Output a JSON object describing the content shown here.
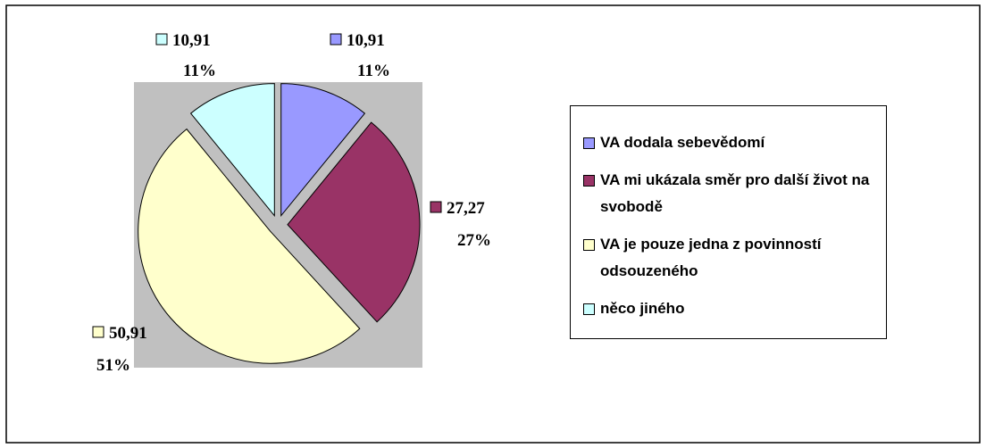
{
  "chart_data": {
    "type": "pie",
    "categories": [
      "VA dodala sebevědomí",
      "VA mi ukázala směr pro další život na svobodě",
      "VA je pouze jedna z povinností odsouzeného",
      "něco jiného"
    ],
    "values": [
      10.91,
      27.27,
      50.91,
      10.91
    ],
    "value_labels": [
      "10,91",
      "27,27",
      "50,91",
      "10,91"
    ],
    "percent_labels": [
      "11%",
      "27%",
      "51%",
      "11%"
    ],
    "colors": [
      "#9999ff",
      "#993366",
      "#ffffcc",
      "#ccffff"
    ],
    "legend": "right"
  }
}
